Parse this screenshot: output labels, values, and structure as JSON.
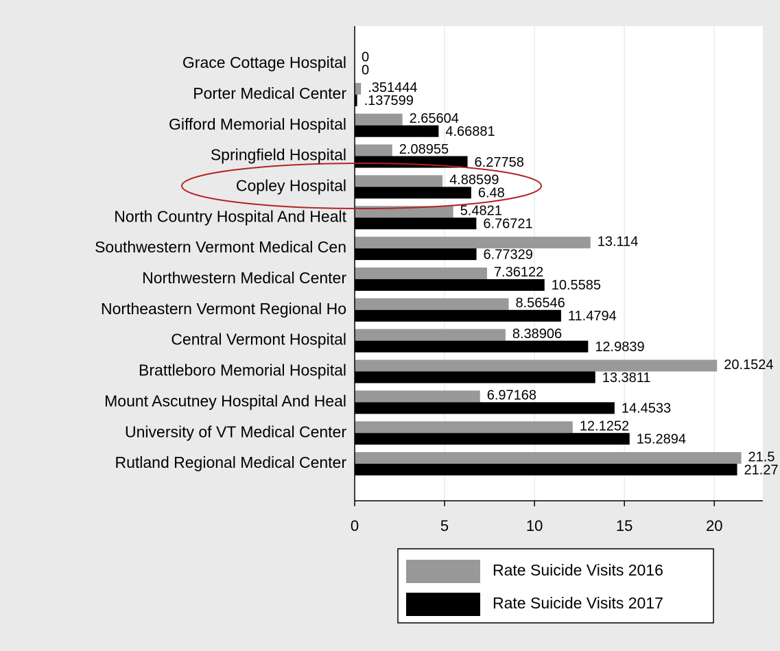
{
  "chart_data": {
    "type": "barh",
    "categories": [
      "Grace Cottage Hospital",
      "Porter Medical Center",
      "Gifford Memorial Hospital",
      "Springfield Hospital",
      "Copley Hospital",
      "North Country Hospital And Healt",
      "Southwestern Vermont Medical Cen",
      "Northwestern Medical Center",
      "Northeastern Vermont Regional Ho",
      "Central Vermont Hospital",
      "Brattleboro Memorial Hospital",
      "Mount Ascutney Hospital And Heal",
      "University of VT Medical Center",
      "Rutland Regional Medical Center"
    ],
    "series": [
      {
        "name": "Rate Suicide Visits 2016",
        "color": "#999999",
        "values": [
          0,
          0.351444,
          2.65604,
          2.08955,
          4.88599,
          5.4821,
          13.114,
          7.36122,
          8.56546,
          8.38906,
          20.1524,
          6.97168,
          12.1252,
          21.5
        ],
        "value_labels": [
          "0",
          ".351444",
          "2.65604",
          "2.08955",
          "4.88599",
          "5.4821",
          "13.114",
          "7.36122",
          "8.56546",
          "8.38906",
          "20.1524",
          "6.97168",
          "12.1252",
          "21.5"
        ]
      },
      {
        "name": "Rate Suicide Visits 2017",
        "color": "#000000",
        "values": [
          0,
          0.137599,
          4.66881,
          6.27758,
          6.48,
          6.76721,
          6.77329,
          10.5585,
          11.4794,
          12.9839,
          13.3811,
          14.4533,
          15.2894,
          21.27
        ],
        "value_labels": [
          "0",
          ".137599",
          "4.66881",
          "6.27758",
          "6.48",
          "6.76721",
          "6.77329",
          "10.5585",
          "11.4794",
          "12.9839",
          "13.3811",
          "14.4533",
          "15.2894",
          "21.27"
        ]
      }
    ],
    "xlim": [
      0,
      22.7
    ],
    "xticks": [
      0,
      5,
      10,
      15,
      20
    ],
    "grid": true
  }
}
